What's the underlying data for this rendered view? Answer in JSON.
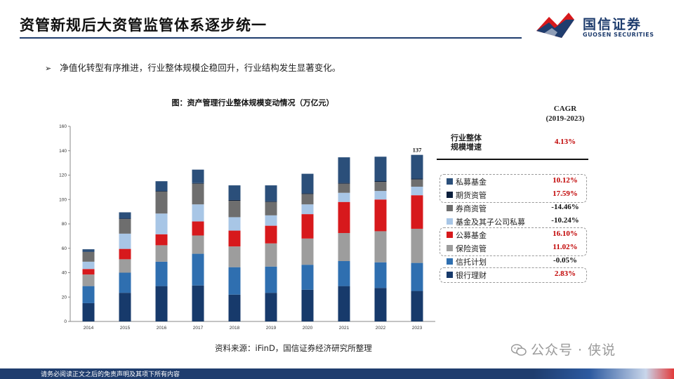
{
  "page": {
    "title": "资管新规后大资管监管体系逐步统一",
    "bullet": "净值化转型有序推进，行业整体规模企稳回升，行业结构发生显著变化。",
    "bullet_marker": "➢",
    "source": "资料来源：iFinD，国信证券经济研究所整理",
    "footer": "请务必阅读正文之后的免责声明及其项下所有内容",
    "watermark": "公众号 · 侠说"
  },
  "logo": {
    "cn": "国信证券",
    "en": "GUOSEN SECURITIES",
    "colors": {
      "red": "#d7191c",
      "blue": "#1f3d6e"
    }
  },
  "cagr_table": {
    "header": "CAGR (2019-2023)",
    "header_line1": "CAGR",
    "header_line2": "(2019-2023)",
    "total_label_line1": "行业整体",
    "total_label_line2": "规模增速",
    "total_value": "4.13%",
    "rows": [
      {
        "name": "私募基金",
        "value": "10.12%",
        "highlight": true
      },
      {
        "name": "期货资管",
        "value": "17.59%",
        "highlight": true
      },
      {
        "name": "券商资管",
        "value": "-14.46%",
        "highlight": false
      },
      {
        "name": "基金及其子公司私募",
        "value": "-10.24%",
        "highlight": false
      },
      {
        "name": "公募基金",
        "value": "16.10%",
        "highlight": true
      },
      {
        "name": "保险资管",
        "value": "11.02%",
        "highlight": true
      },
      {
        "name": "信托计划",
        "value": "-0.05%",
        "highlight": false
      },
      {
        "name": "银行理财",
        "value": "2.83%",
        "highlight": true
      }
    ]
  },
  "chart_data": {
    "type": "bar",
    "stacked": true,
    "title": "图：资产管理行业整体规模变动情况（万亿元）",
    "categories": [
      "2014",
      "2015",
      "2016",
      "2017",
      "2018",
      "2019",
      "2020",
      "2021",
      "2022",
      "2023"
    ],
    "ylim": [
      0,
      160
    ],
    "yticks": [
      0,
      20,
      40,
      60,
      80,
      100,
      120,
      140,
      160
    ],
    "grid": false,
    "series": [
      {
        "name": "银行理财",
        "color": "#173a6b",
        "values": [
          15,
          23.5,
          29,
          29.5,
          22,
          23.5,
          26,
          29,
          27.5,
          25
        ]
      },
      {
        "name": "信托计划",
        "color": "#2f6fb0",
        "values": [
          14,
          16.5,
          20,
          26,
          22.5,
          21.5,
          20.5,
          20.5,
          21,
          23
        ]
      },
      {
        "name": "保险资管",
        "color": "#9d9d9d",
        "values": [
          9.5,
          11,
          13.5,
          15,
          17,
          19,
          21.5,
          23,
          25.5,
          28
        ]
      },
      {
        "name": "公募基金",
        "color": "#d7191c",
        "values": [
          4.5,
          8.5,
          9,
          11.5,
          13,
          14.5,
          20,
          25.5,
          26,
          27.5
        ]
      },
      {
        "name": "基金及其子公司私募",
        "color": "#a8c6e6",
        "values": [
          6,
          12.5,
          17,
          14,
          11,
          8.5,
          8,
          7.5,
          7,
          7
        ]
      },
      {
        "name": "券商资管",
        "color": "#6e6e6e",
        "values": [
          8,
          12,
          18,
          17,
          13.5,
          11,
          8.5,
          7.5,
          7.5,
          6
        ]
      },
      {
        "name": "期货资管",
        "color": "#0b1f3d",
        "values": [
          0.2,
          0.5,
          0.5,
          0.5,
          0.6,
          0.6,
          0.6,
          0.6,
          0.6,
          0.6
        ]
      },
      {
        "name": "私募基金",
        "color": "#2b4f7a",
        "values": [
          2,
          5,
          8,
          11,
          12,
          13,
          16,
          21,
          20,
          19.5
        ]
      }
    ],
    "annotations": [
      {
        "category": "2023",
        "text": "137"
      }
    ]
  }
}
